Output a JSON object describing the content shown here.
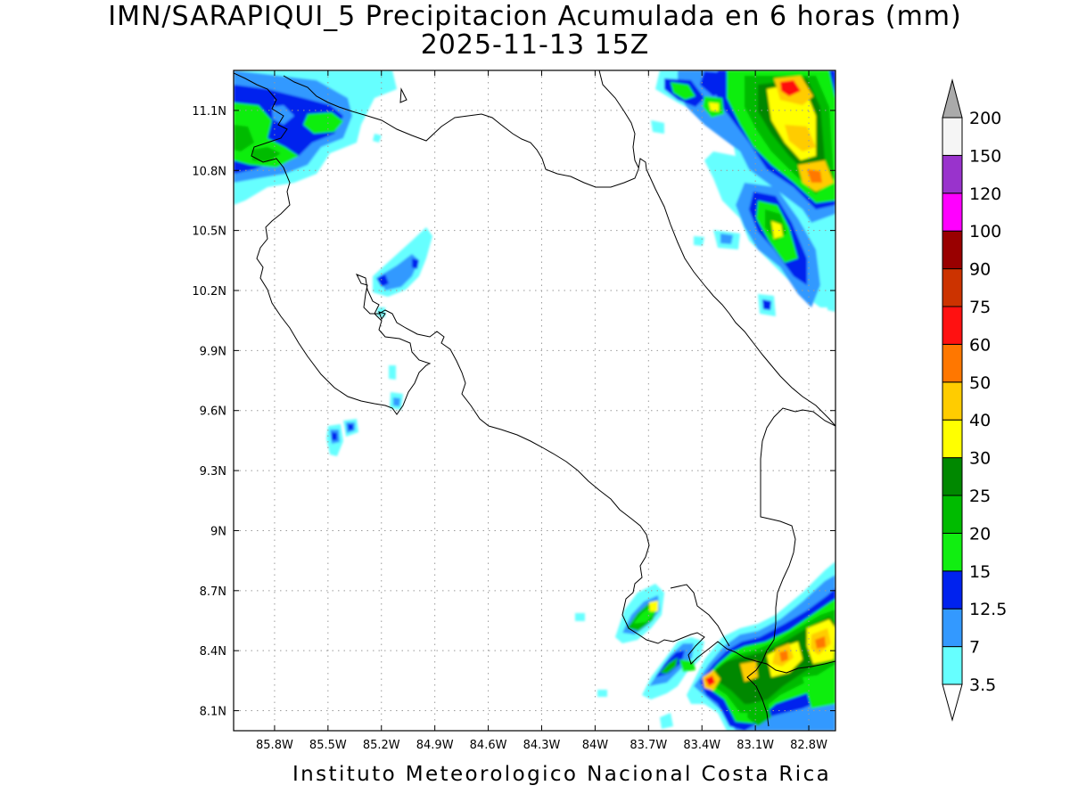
{
  "header": {
    "title": "IMN/SARAPIQUI_5 Precipitacion Acumulada en 6 horas (mm)",
    "subtitle": "2025-11-13 15Z"
  },
  "footer": {
    "credit": "Instituto Meteorologico Nacional Costa Rica"
  },
  "map": {
    "lon_range": [
      -86.03,
      -82.65
    ],
    "lat_range": [
      8.0,
      11.3
    ],
    "lon_ticks": [
      {
        "value": -85.8,
        "label": "85.8W"
      },
      {
        "value": -85.5,
        "label": "85.5W"
      },
      {
        "value": -85.2,
        "label": "85.2W"
      },
      {
        "value": -84.9,
        "label": "84.9W"
      },
      {
        "value": -84.6,
        "label": "84.6W"
      },
      {
        "value": -84.3,
        "label": "84.3W"
      },
      {
        "value": -84.0,
        "label": "84W"
      },
      {
        "value": -83.7,
        "label": "83.7W"
      },
      {
        "value": -83.4,
        "label": "83.4W"
      },
      {
        "value": -83.1,
        "label": "83.1W"
      },
      {
        "value": -82.8,
        "label": "82.8W"
      }
    ],
    "lat_ticks": [
      {
        "value": 11.1,
        "label": "11.1N"
      },
      {
        "value": 10.8,
        "label": "10.8N"
      },
      {
        "value": 10.5,
        "label": "10.5N"
      },
      {
        "value": 10.2,
        "label": "10.2N"
      },
      {
        "value": 9.9,
        "label": "9.9N"
      },
      {
        "value": 9.6,
        "label": "9.6N"
      },
      {
        "value": 9.3,
        "label": "9.3N"
      },
      {
        "value": 9.0,
        "label": "9N"
      },
      {
        "value": 8.7,
        "label": "8.7N"
      },
      {
        "value": 8.4,
        "label": "8.4N"
      },
      {
        "value": 8.1,
        "label": "8.1N"
      }
    ],
    "gridlines": true
  },
  "colorbar": {
    "labels": [
      "3.5",
      "7",
      "12.5",
      "15",
      "20",
      "25",
      "30",
      "40",
      "50",
      "60",
      "75",
      "90",
      "100",
      "120",
      "150",
      "200"
    ],
    "colors": [
      "#66ffff",
      "#3399ff",
      "#0022ee",
      "#11ee11",
      "#00bb00",
      "#008800",
      "#ffff00",
      "#ffcc00",
      "#ff7700",
      "#ff1111",
      "#cc3300",
      "#990000",
      "#ff00ff",
      "#9933cc",
      "#f5f5f5",
      "#aaaaaa"
    ]
  },
  "precip_scale_colors": {
    "c35": "#66ffff",
    "c7": "#3399ff",
    "c125": "#0022ee",
    "c15": "#11ee11",
    "c20": "#00bb00",
    "c25": "#008800",
    "c30": "#ffff00",
    "c40": "#ffcc00",
    "c50": "#ff7700",
    "c60": "#ff1111"
  }
}
